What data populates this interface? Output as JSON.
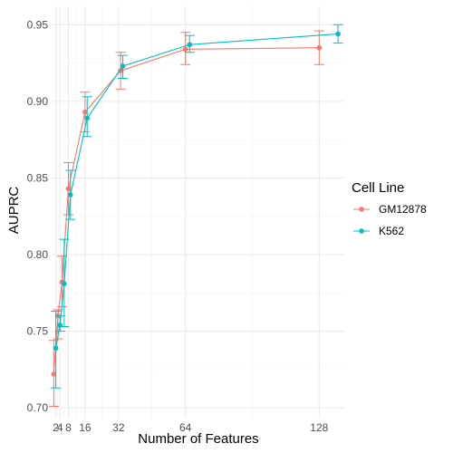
{
  "chart_data": {
    "type": "line",
    "title": "",
    "xlabel": "Number of Features",
    "ylabel": "AUPRC",
    "x": [
      2,
      4,
      8,
      16,
      32,
      64,
      128
    ],
    "x_ticks": [
      2,
      4,
      8,
      16,
      32,
      64,
      128
    ],
    "x_tick_labels": [
      "2",
      "4",
      "8",
      "16",
      "32",
      "64",
      "128"
    ],
    "y_ticks": [
      0.7,
      0.75,
      0.8,
      0.85,
      0.9,
      0.95
    ],
    "y_tick_labels": [
      "0.70",
      "0.75",
      "0.80",
      "0.85",
      "0.90",
      "0.95"
    ],
    "xlim": [
      0,
      140
    ],
    "ylim": [
      0.693,
      0.962
    ],
    "grid": true,
    "error_bars": true,
    "legend": {
      "title": "Cell Line",
      "position": "right"
    },
    "series": [
      {
        "name": "GM12878",
        "color": "#F8766D",
        "x": [
          1,
          3,
          5,
          8,
          16,
          33,
          64,
          128
        ],
        "y": [
          0.722,
          0.76,
          0.782,
          0.843,
          0.893,
          0.92,
          0.934,
          0.935
        ],
        "ymin": [
          0.701,
          0.745,
          0.766,
          0.826,
          0.88,
          0.908,
          0.924,
          0.924
        ],
        "ymax": [
          0.744,
          0.764,
          0.799,
          0.86,
          0.906,
          0.932,
          0.945,
          0.946
        ]
      },
      {
        "name": "K562",
        "color": "#00BFC4",
        "x": [
          2,
          4,
          6,
          9,
          17,
          34,
          66,
          137
        ],
        "y": [
          0.739,
          0.754,
          0.781,
          0.839,
          0.889,
          0.923,
          0.937,
          0.944
        ],
        "ymin": [
          0.713,
          0.75,
          0.753,
          0.823,
          0.877,
          0.915,
          0.932,
          0.938
        ],
        "ymax": [
          0.763,
          0.76,
          0.81,
          0.855,
          0.903,
          0.93,
          0.943,
          0.95
        ]
      }
    ]
  }
}
